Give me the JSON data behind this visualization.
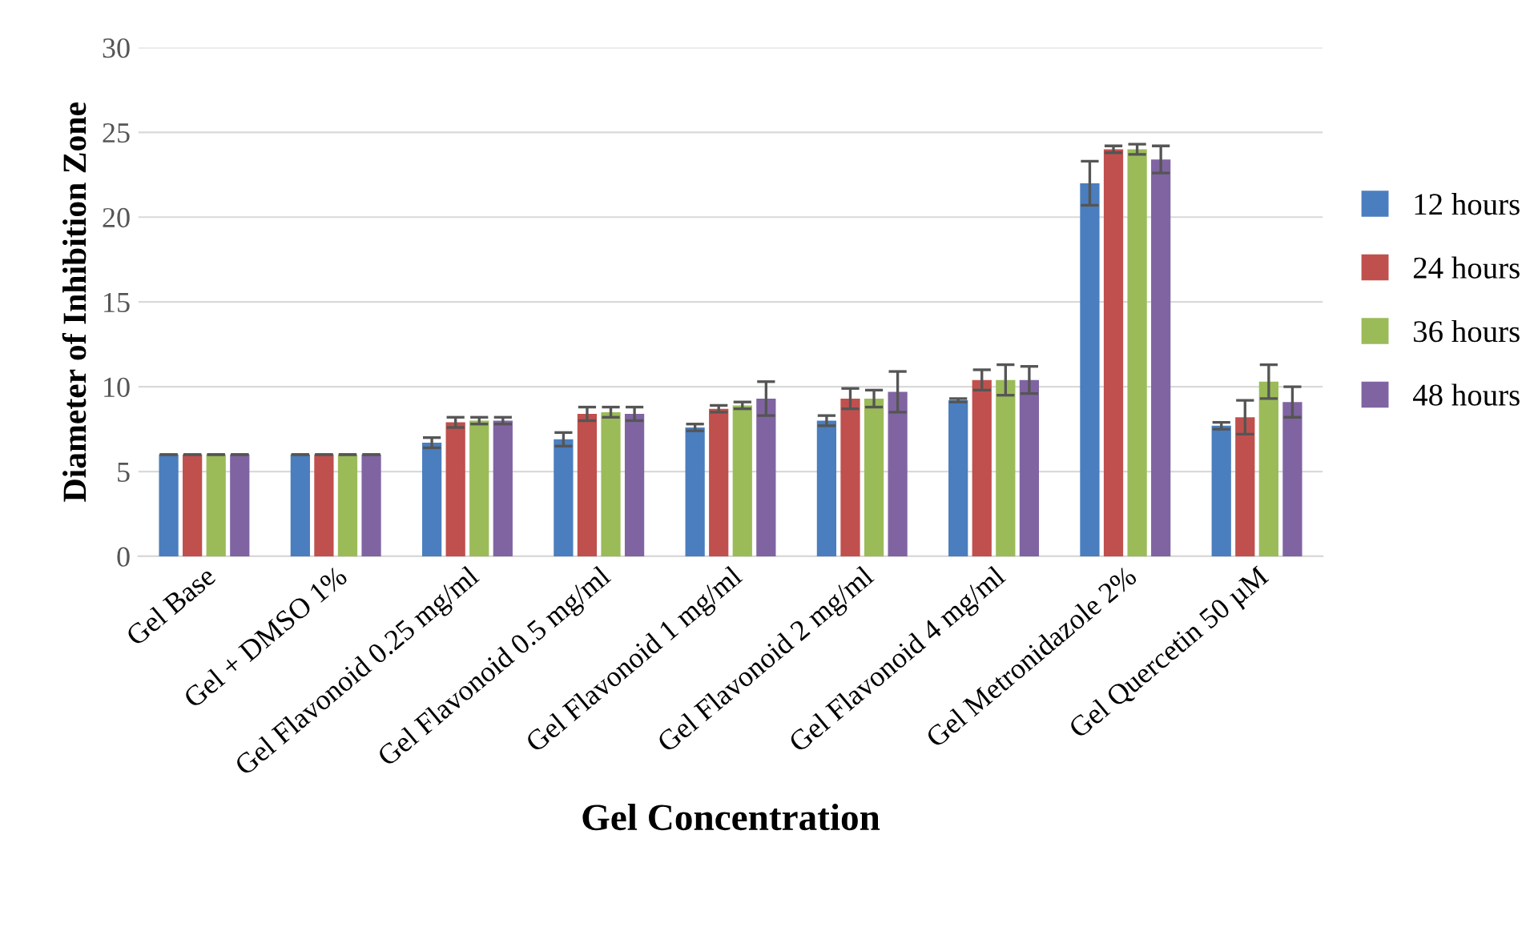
{
  "chart_data": {
    "type": "bar",
    "xlabel": "Gel Concentration",
    "ylabel": "Diameter of Inhibition Zone",
    "categories": [
      "Gel Base",
      "Gel + DMSO 1%",
      "Gel Flavonoid 0.25 mg/ml",
      "Gel Flavonoid 0.5 mg/ml",
      "Gel Flavonoid 1 mg/ml",
      "Gel Flavonoid 2 mg/ml",
      "Gel Flavonoid 4 mg/ml",
      "Gel Metronidazole 2%",
      "Gel Quercetin 50 µM"
    ],
    "series": [
      {
        "name": "12 hours",
        "color": "#4a7ebf",
        "values": [
          6,
          6,
          6.7,
          6.9,
          7.6,
          8.0,
          9.2,
          22.0,
          7.7
        ],
        "errors": [
          0,
          0,
          0.3,
          0.4,
          0.2,
          0.3,
          0.1,
          1.3,
          0.2
        ]
      },
      {
        "name": "24 hours",
        "color": "#c0504d",
        "values": [
          6,
          6,
          7.9,
          8.4,
          8.7,
          9.3,
          10.4,
          24.0,
          8.2
        ],
        "errors": [
          0,
          0,
          0.3,
          0.4,
          0.2,
          0.6,
          0.6,
          0.2,
          1.0
        ]
      },
      {
        "name": "36 hours",
        "color": "#9bbb59",
        "values": [
          6,
          6,
          8.0,
          8.5,
          8.9,
          9.3,
          10.4,
          24.0,
          10.3
        ],
        "errors": [
          0,
          0,
          0.2,
          0.3,
          0.2,
          0.5,
          0.9,
          0.3,
          1.0
        ]
      },
      {
        "name": "48 hours",
        "color": "#8064a2",
        "values": [
          6,
          6,
          8.0,
          8.4,
          9.3,
          9.7,
          10.4,
          23.4,
          9.1
        ],
        "errors": [
          0,
          0,
          0.2,
          0.4,
          1.0,
          1.2,
          0.8,
          0.8,
          0.9
        ]
      }
    ],
    "ylim": [
      0,
      30
    ],
    "yticks": [
      0,
      5,
      10,
      15,
      20,
      25,
      30
    ],
    "grid": "y",
    "legend": "right"
  }
}
